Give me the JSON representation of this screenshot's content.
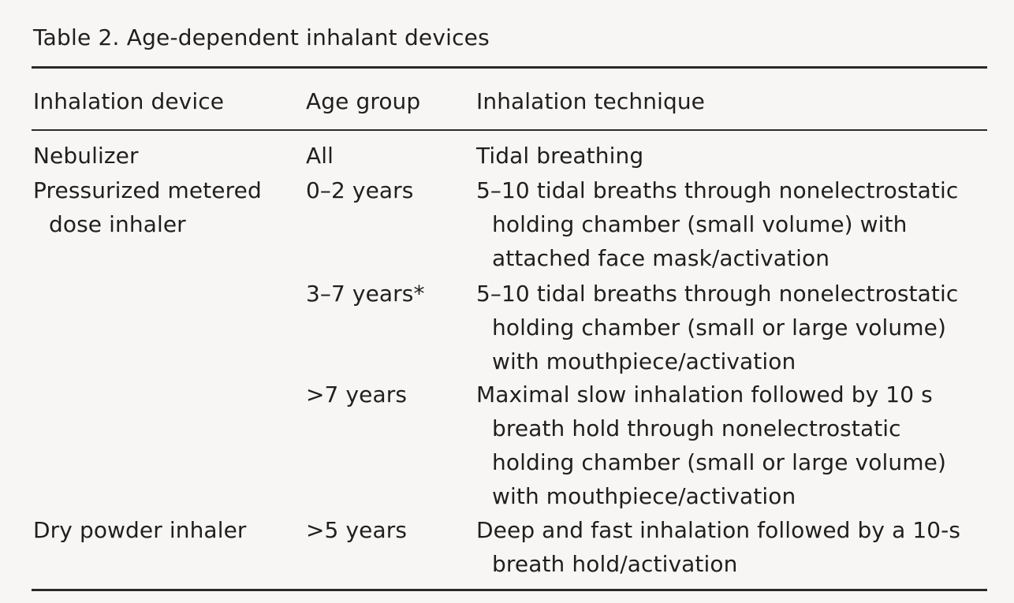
{
  "table": {
    "caption": "Table 2. Age-dependent inhalant devices",
    "headers": [
      "Inhalation device",
      "Age group",
      "Inhalation technique"
    ],
    "rows": [
      {
        "device": [
          "Nebulizer"
        ],
        "age": "All",
        "technique": [
          "Tidal breathing"
        ]
      },
      {
        "device": [
          "Pressurized metered",
          "dose inhaler"
        ],
        "age": "0–2 years",
        "technique": [
          "5–10 tidal breaths through nonelectrostatic",
          "holding chamber (small volume) with",
          "attached face mask/activation"
        ]
      },
      {
        "device": [],
        "age": "3–7 years*",
        "technique": [
          "5–10 tidal breaths through nonelectrostatic",
          "holding chamber (small or large volume)",
          "with mouthpiece/activation"
        ]
      },
      {
        "device": [],
        "age": ">7 years",
        "technique": [
          "Maximal slow inhalation followed by 10 s",
          "breath hold through nonelectrostatic",
          "holding chamber (small or large volume)",
          "with mouthpiece/activation"
        ]
      },
      {
        "device": [
          "Dry powder inhaler"
        ],
        "age": ">5 years",
        "technique": [
          "Deep and fast inhalation followed by a 10-s",
          "breath hold/activation"
        ]
      }
    ]
  }
}
